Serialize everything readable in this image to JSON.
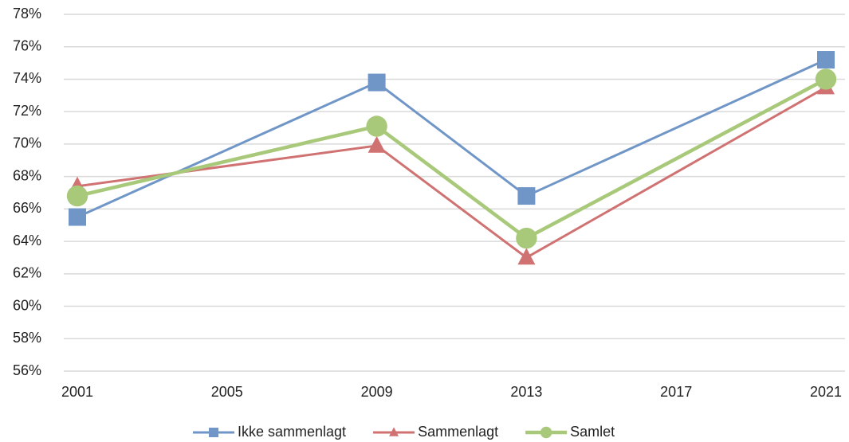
{
  "chart_data": {
    "type": "line",
    "x": [
      2001,
      2009,
      2013,
      2021
    ],
    "xlim": [
      2001,
      2021
    ],
    "xticks": [
      2001,
      2005,
      2009,
      2013,
      2017,
      2021
    ],
    "ylim": [
      56,
      78
    ],
    "yticks": [
      {
        "value": 56,
        "label": "56%"
      },
      {
        "value": 58,
        "label": "58%"
      },
      {
        "value": 60,
        "label": "60%"
      },
      {
        "value": 62,
        "label": "62%"
      },
      {
        "value": 64,
        "label": "64%"
      },
      {
        "value": 66,
        "label": "66%"
      },
      {
        "value": 68,
        "label": "68%"
      },
      {
        "value": 70,
        "label": "70%"
      },
      {
        "value": 72,
        "label": "72%"
      },
      {
        "value": 74,
        "label": "74%"
      },
      {
        "value": 76,
        "label": "76%"
      },
      {
        "value": 78,
        "label": "78%"
      }
    ],
    "grid": true,
    "legend": "bottom",
    "series": [
      {
        "name": "Ikke sammenlagt",
        "color": "#7096c8",
        "marker": "square",
        "values": [
          65.5,
          73.8,
          66.8,
          75.2
        ]
      },
      {
        "name": "Sammenlagt",
        "color": "#d07272",
        "marker": "triangle",
        "values": [
          67.4,
          69.9,
          63.0,
          73.5
        ]
      },
      {
        "name": "Samlet",
        "color": "#a9c97a",
        "marker": "circle",
        "values": [
          66.8,
          71.1,
          64.2,
          74.0
        ]
      }
    ]
  }
}
